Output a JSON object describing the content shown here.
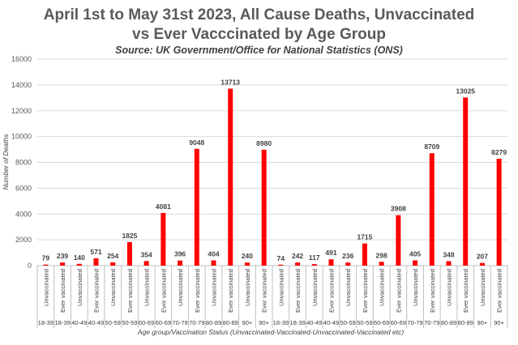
{
  "chart_data": {
    "type": "bar",
    "title": "April 1st to May 31st 2023, All Cause Deaths, Unvaccinated",
    "title_line2": "vs Ever Vacccinated by Age Group",
    "subtitle": "Source: UK Government/Office for National Statistics (ONS)",
    "ylabel": "Number of Deaths",
    "xlabel": "Age group/Vaccination Status (Unvaccinated-Vaccinated-Unvaccinated-Vaccinated etc)",
    "ylim": [
      0,
      16000
    ],
    "yticks": [
      "0",
      "2000",
      "4000",
      "6000",
      "8000",
      "10000",
      "12000",
      "14000",
      "16000"
    ],
    "grid": true,
    "bar_color": "#ff0000",
    "categories": [
      "Unvaccinated",
      "Ever vaccinated",
      "Unvaccinated",
      "Ever vaccinated",
      "Unvaccinated",
      "Ever vaccinated",
      "Unvaccinated",
      "Ever vaccinated",
      "Unvaccinated",
      "Ever vaccinated",
      "Unvaccinated",
      "Ever vaccinated",
      "Unvaccinated",
      "Ever vaccinated",
      "Unvaccinated",
      "Ever vaccinated",
      "Unvaccinated",
      "Ever vaccinated",
      "Unvaccinated",
      "Ever vaccinated",
      "Unvaccinated",
      "Ever vaccinated",
      "Unvaccinated",
      "Ever vaccinated",
      "Unvaccinated",
      "Ever vaccinated",
      "Unvaccinated",
      "Ever vaccinated"
    ],
    "age_groups": [
      "18-39",
      "18-39",
      "40-49",
      "40-49",
      "50-59",
      "50-59",
      "60-69",
      "60-69",
      "70-79",
      "70-79",
      "80-89",
      "80-89",
      "90+",
      "90+",
      "18-39",
      "18-39",
      "40-49",
      "40-49",
      "50-59",
      "50-59",
      "60-69",
      "60-69",
      "70-79",
      "70-79",
      "80-89",
      "80-89",
      "90+",
      "90+"
    ],
    "values": [
      79,
      239,
      140,
      571,
      254,
      1825,
      354,
      4081,
      396,
      9048,
      404,
      13713,
      240,
      8980,
      74,
      242,
      117,
      491,
      236,
      1715,
      298,
      3908,
      405,
      8709,
      348,
      13025,
      207,
      8279
    ],
    "data_labels": [
      "79",
      "239",
      "140",
      "571",
      "254",
      "1825",
      "354",
      "4081",
      "396",
      "9048",
      "404",
      "13713",
      "240",
      "8980",
      "74",
      "242",
      "117",
      "491",
      "236",
      "1715",
      "298",
      "3908",
      "405",
      "8709",
      "348",
      "13025",
      "207",
      "8279"
    ]
  }
}
